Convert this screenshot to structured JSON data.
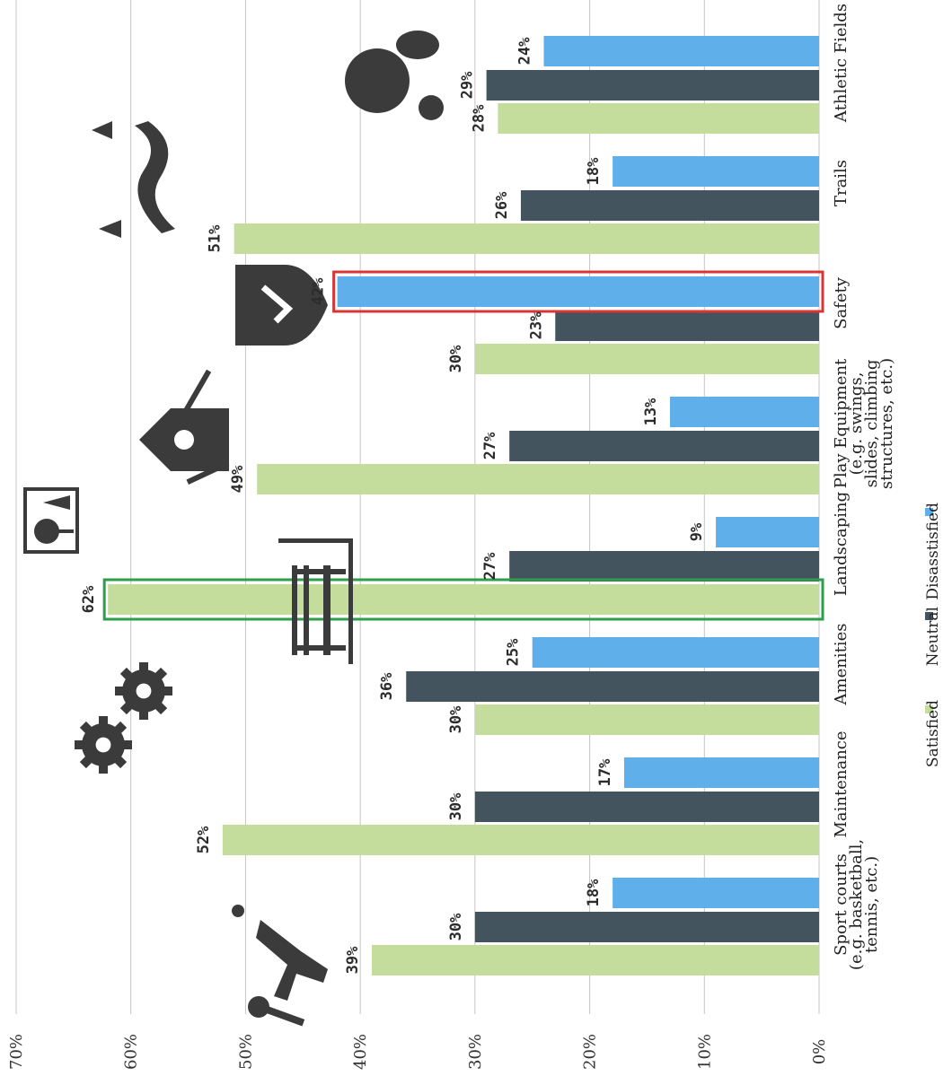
{
  "chart_data": {
    "type": "bar",
    "orientation": "horizontal",
    "categories": [
      "Sport courts (e.g. basketball, tennis, etc.)",
      "Maintenance",
      "Amenities",
      "Landscaping",
      "Play Equipment (e.g. swings, slides, climbing structures, etc.)",
      "Safety",
      "Trails",
      "Athletic Fields"
    ],
    "category_lines": [
      [
        "Sport courts",
        "(e.g. basketball,",
        "tennis, etc.)"
      ],
      [
        "Maintenance"
      ],
      [
        "Amenities"
      ],
      [
        "Landscaping"
      ],
      [
        "Play Equipment",
        "(e.g. swings,",
        "slides, climbing",
        "structures, etc.)"
      ],
      [
        "Safety"
      ],
      [
        "Trails"
      ],
      [
        "Athletic Fields"
      ]
    ],
    "series": [
      {
        "name": "Satisfied",
        "color": "#c5dd9c",
        "values": [
          39,
          52,
          30,
          62,
          49,
          30,
          51,
          28
        ]
      },
      {
        "name": "Neutral",
        "color": "#44545f",
        "values": [
          30,
          30,
          36,
          27,
          27,
          23,
          26,
          29
        ]
      },
      {
        "name": "Disasstisfied",
        "color": "#5fb0ea",
        "values": [
          18,
          17,
          25,
          9,
          13,
          42,
          18,
          24
        ]
      }
    ],
    "data_labels": [
      [
        "39%",
        "30%",
        "18%"
      ],
      [
        "52%",
        "30%",
        "17%"
      ],
      [
        "30%",
        "36%",
        "25%"
      ],
      [
        "62%",
        "27%",
        "9%"
      ],
      [
        "49%",
        "27%",
        "13%"
      ],
      [
        "30%",
        "23%",
        "42%"
      ],
      [
        "51%",
        "26%",
        "18%"
      ],
      [
        "28%",
        "29%",
        "24%"
      ]
    ],
    "axis": {
      "ticks": [
        0,
        10,
        20,
        30,
        40,
        50,
        60,
        70
      ],
      "tick_labels": [
        "0%",
        "10%",
        "20%",
        "30%",
        "40%",
        "50%",
        "60%",
        "70%"
      ],
      "range": [
        0,
        70
      ],
      "grid": true
    },
    "highlights": [
      {
        "category": "Landscaping",
        "series": "Satisfied",
        "color": "#2e9e4a"
      },
      {
        "category": "Safety",
        "series": "Disasstisfied",
        "color": "#d93535"
      }
    ],
    "legend": {
      "placement": "bottom",
      "labels": [
        "Satisfied",
        "Neutral",
        "Disasstisfied"
      ]
    },
    "icons": [
      "sport-player-icon",
      "gears-icon",
      "park-bench-lamp-icon",
      "landscape-tree-icon",
      "playground-icon",
      "shield-check-icon",
      "trail-trees-icon",
      "sports-balls-icon"
    ]
  }
}
